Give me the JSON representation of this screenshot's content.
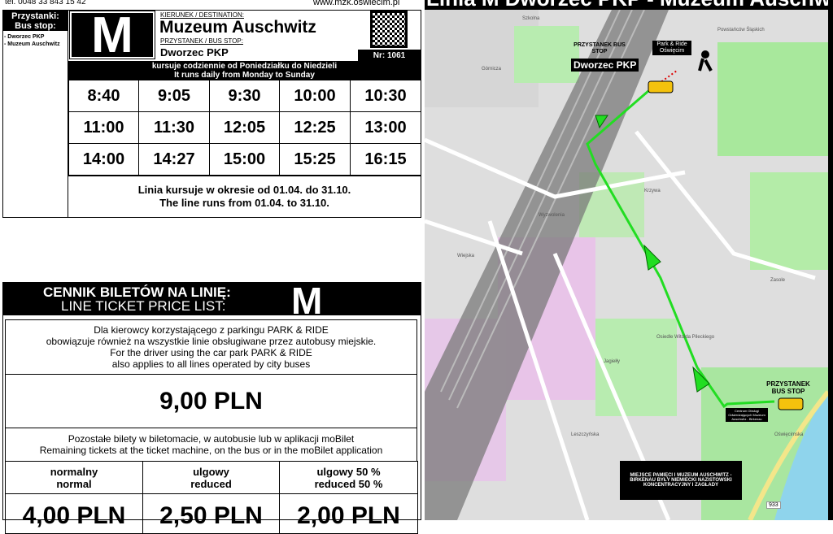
{
  "header": {
    "phone": "tel. 0048 33 843 15 42",
    "website": "www.mzk.oswiecim.pl"
  },
  "stops_panel": {
    "title_pl": "Przystanki:",
    "title_en": "Bus stop:",
    "stops": [
      "- Dworzec PKP",
      "- Muzeum Auschwitz"
    ]
  },
  "line": {
    "letter": "M",
    "destination_label": "KIERUNEK / DESTINATION:",
    "destination": "Muzeum Auschwitz",
    "stop_label": "PRZYSTANEK / BUS STOP:",
    "stop": "Dworzec PKP",
    "number": "Nr: 1061",
    "qr_icon": "qr-code-icon"
  },
  "schedule": {
    "days_pl": "kursuje codziennie od Poniedziałku do Niedzieli",
    "days_en": "It runs daily from Monday to Sunday",
    "times": [
      [
        "8:40",
        "9:05",
        "9:30",
        "10:00",
        "10:30"
      ],
      [
        "11:00",
        "11:30",
        "12:05",
        "12:25",
        "13:00"
      ],
      [
        "14:00",
        "14:27",
        "15:00",
        "15:25",
        "16:15"
      ]
    ],
    "period_pl": "Linia kursuje w okresie od 01.04. do 31.10.",
    "period_en": "The line runs from 01.04. to 31.10."
  },
  "prices": {
    "title_pl": "CENNIK BILETÓW NA LINIĘ:",
    "title_en": "LINE TICKET PRICE LIST:",
    "letter": "M",
    "pr_info": [
      "Dla kierowcy korzystającego z parkingu PARK & RIDE",
      "obowiązuje również na wszystkie linie obsługiwane przez autobusy miejskie.",
      "For the driver using the car park PARK & RIDE",
      "also applies to all lines operated by city buses"
    ],
    "pr_price": "9,00 PLN",
    "other_info": [
      "Pozostałe bilety w biletomacie, w autobusie lub w aplikacji moBilet",
      "Remaining tickets at the ticket machine, on the bus or in the moBilet application"
    ],
    "types": [
      {
        "pl": "normalny",
        "en": "normal",
        "price": "4,00 PLN"
      },
      {
        "pl": "ulgowy",
        "en": "reduced",
        "price": "2,50 PLN"
      },
      {
        "pl": "ulgowy 50 %",
        "en": "reduced 50 %",
        "price": "2,00 PLN"
      }
    ]
  },
  "map": {
    "title": "Linia M Dworzec PKP - Muzeum Auschwitz",
    "route_color": "#22dd22",
    "start_stop_label": "PRZYSTANEK BUS STOP",
    "start_stop": "Dworzec PKP",
    "park_ride": "Park & Ride Oświęcim",
    "end_stop_label": "PRZYSTANEK BUS STOP",
    "end_center": "Centrum Obsługi Odwiedzających Muzeum Auschwitz - Birkenau",
    "memorial": "MIEJSCE PAMIĘCI I MUZEUM AUSCHWITZ - BIRKENAU BYŁY NIEMIECKI NAZISTOWSKI KONCENTRACYJNY I ZAGŁADY",
    "streets": [
      "Szkolna",
      "Górnicza",
      "Powstańców Śląskich",
      "Wyzwolenia",
      "Krzywa",
      "Jagiełły",
      "Osiedle Witolda Pileckiego",
      "Leszczyńska",
      "Oświęcimska",
      "Zasole",
      "Wiejska"
    ],
    "road_number": "933"
  }
}
